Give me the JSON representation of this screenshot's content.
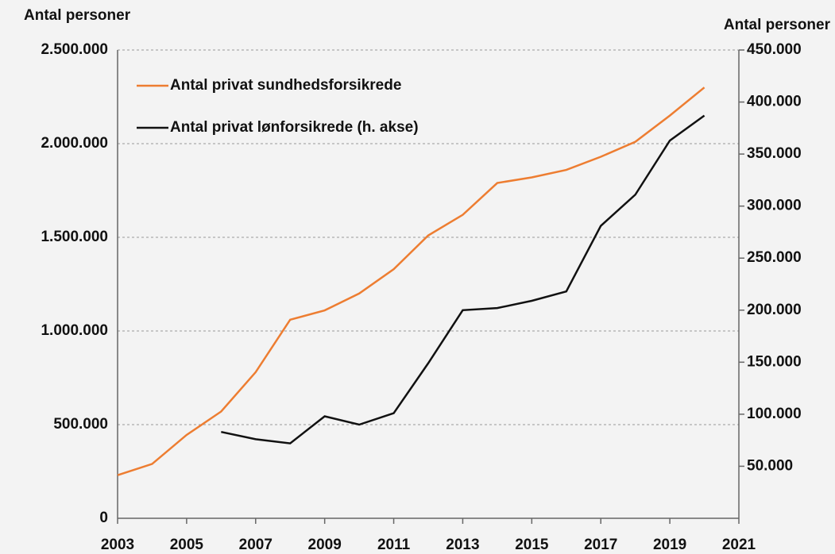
{
  "chart_data": {
    "type": "line",
    "y_label": "Antal personer",
    "y2_label": "Antal personer",
    "x": [
      2003,
      2004,
      2005,
      2006,
      2007,
      2008,
      2009,
      2010,
      2011,
      2012,
      2013,
      2014,
      2015,
      2016,
      2017,
      2018,
      2019,
      2020
    ],
    "series": [
      {
        "name": "Antal privat sundhedsforsikrede",
        "color": "#ed7d31",
        "axis": "y",
        "values": [
          230000,
          290000,
          445000,
          570000,
          780000,
          1060000,
          1110000,
          1200000,
          1330000,
          1510000,
          1620000,
          1790000,
          1820000,
          1860000,
          1930000,
          2010000,
          2150000,
          2300000
        ]
      },
      {
        "name": "Antal privat lønforsikrede (h. akse)",
        "color": "#111111",
        "axis": "y2",
        "values": [
          null,
          null,
          null,
          83000,
          76000,
          72000,
          98000,
          90000,
          101000,
          149000,
          200000,
          202000,
          209000,
          218000,
          281000,
          311000,
          363000,
          387000
        ]
      }
    ],
    "xlim": [
      2003,
      2021
    ],
    "xticks": [
      2003,
      2005,
      2007,
      2009,
      2011,
      2013,
      2015,
      2017,
      2019,
      2021
    ],
    "ylim": [
      0,
      2500000
    ],
    "yticks": [
      0,
      {
        "value": 500000,
        "label": "500.000"
      },
      {
        "value": 1000000,
        "label": "1.000.000"
      },
      {
        "value": 1500000,
        "label": "1.500.000"
      },
      {
        "value": 2000000,
        "label": "2.000.000"
      },
      {
        "value": 2500000,
        "label": "2.500.000"
      }
    ],
    "y2lim": [
      0,
      450000
    ],
    "y2ticks": [
      {
        "value": 50000,
        "label": "50.000"
      },
      {
        "value": 100000,
        "label": "100.000"
      },
      {
        "value": 150000,
        "label": "150.000"
      },
      {
        "value": 200000,
        "label": "200.000"
      },
      {
        "value": 250000,
        "label": "250.000"
      },
      {
        "value": 300000,
        "label": "300.000"
      },
      {
        "value": 350000,
        "label": "350.000"
      },
      {
        "value": 400000,
        "label": "400.000"
      },
      {
        "value": 450000,
        "label": "450.000"
      }
    ],
    "grid": true,
    "legend": "upper left"
  }
}
